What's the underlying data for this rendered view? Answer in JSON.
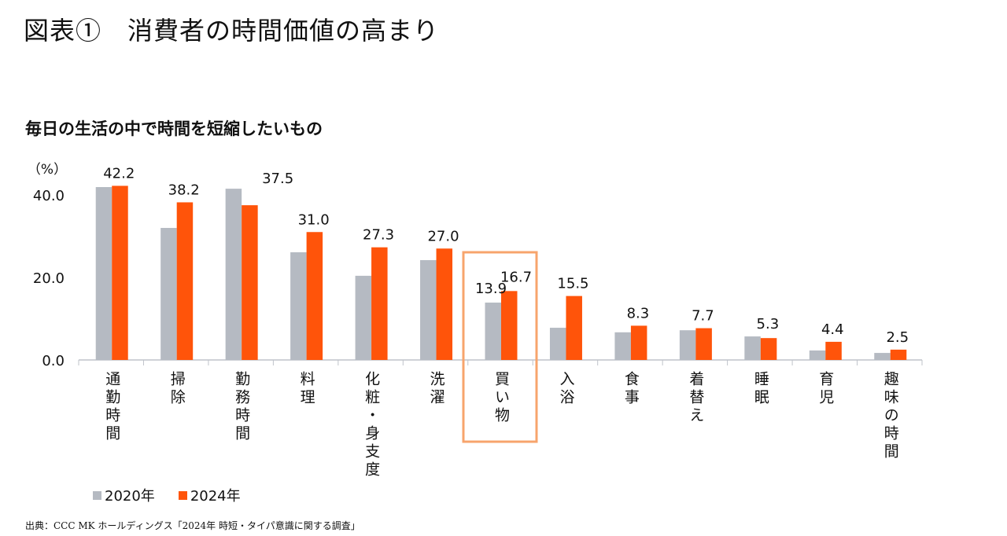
{
  "title": "図表①　消費者の時間価値の高まり",
  "footer": "出典：CCC MK ホールディングス「2024年 時短・タイパ意識に関する調査」",
  "chart_data": {
    "type": "bar",
    "title": "毎日の生活の中で時間を短縮したいもの",
    "ylabel": "（%）",
    "ylim": [
      0,
      40
    ],
    "yticks": [
      "0.0",
      "20.0",
      "40.0"
    ],
    "grid": false,
    "legend_position": "bottom-left",
    "categories": [
      "通勤時間",
      "掃除",
      "勤務時間",
      "料理",
      "化粧・身支度",
      "洗濯",
      "買い物",
      "入浴",
      "食事",
      "着替え",
      "睡眠",
      "育児",
      "趣味の時間"
    ],
    "series": [
      {
        "name": "2020年",
        "color": "#B5BAC2",
        "values": [
          41.9,
          32.0,
          41.5,
          26.1,
          20.4,
          24.2,
          13.9,
          7.8,
          6.7,
          7.2,
          5.7,
          2.3,
          1.7
        ],
        "labels": [
          "",
          "",
          "",
          "",
          "",
          "",
          "13.9",
          "",
          "",
          "",
          "",
          "",
          ""
        ]
      },
      {
        "name": "2024年",
        "color": "#FF540A",
        "values": [
          42.2,
          38.2,
          37.5,
          31.0,
          27.3,
          27.0,
          16.7,
          15.5,
          8.3,
          7.7,
          5.3,
          4.4,
          2.5
        ],
        "labels": [
          "42.2",
          "38.2",
          "37.5",
          "31.0",
          "27.3",
          "27.0",
          "16.7",
          "15.5",
          "8.3",
          "7.7",
          "5.3",
          "4.4",
          "2.5"
        ]
      }
    ],
    "highlight": {
      "category": "買い物",
      "color": "#F7A46C"
    }
  }
}
